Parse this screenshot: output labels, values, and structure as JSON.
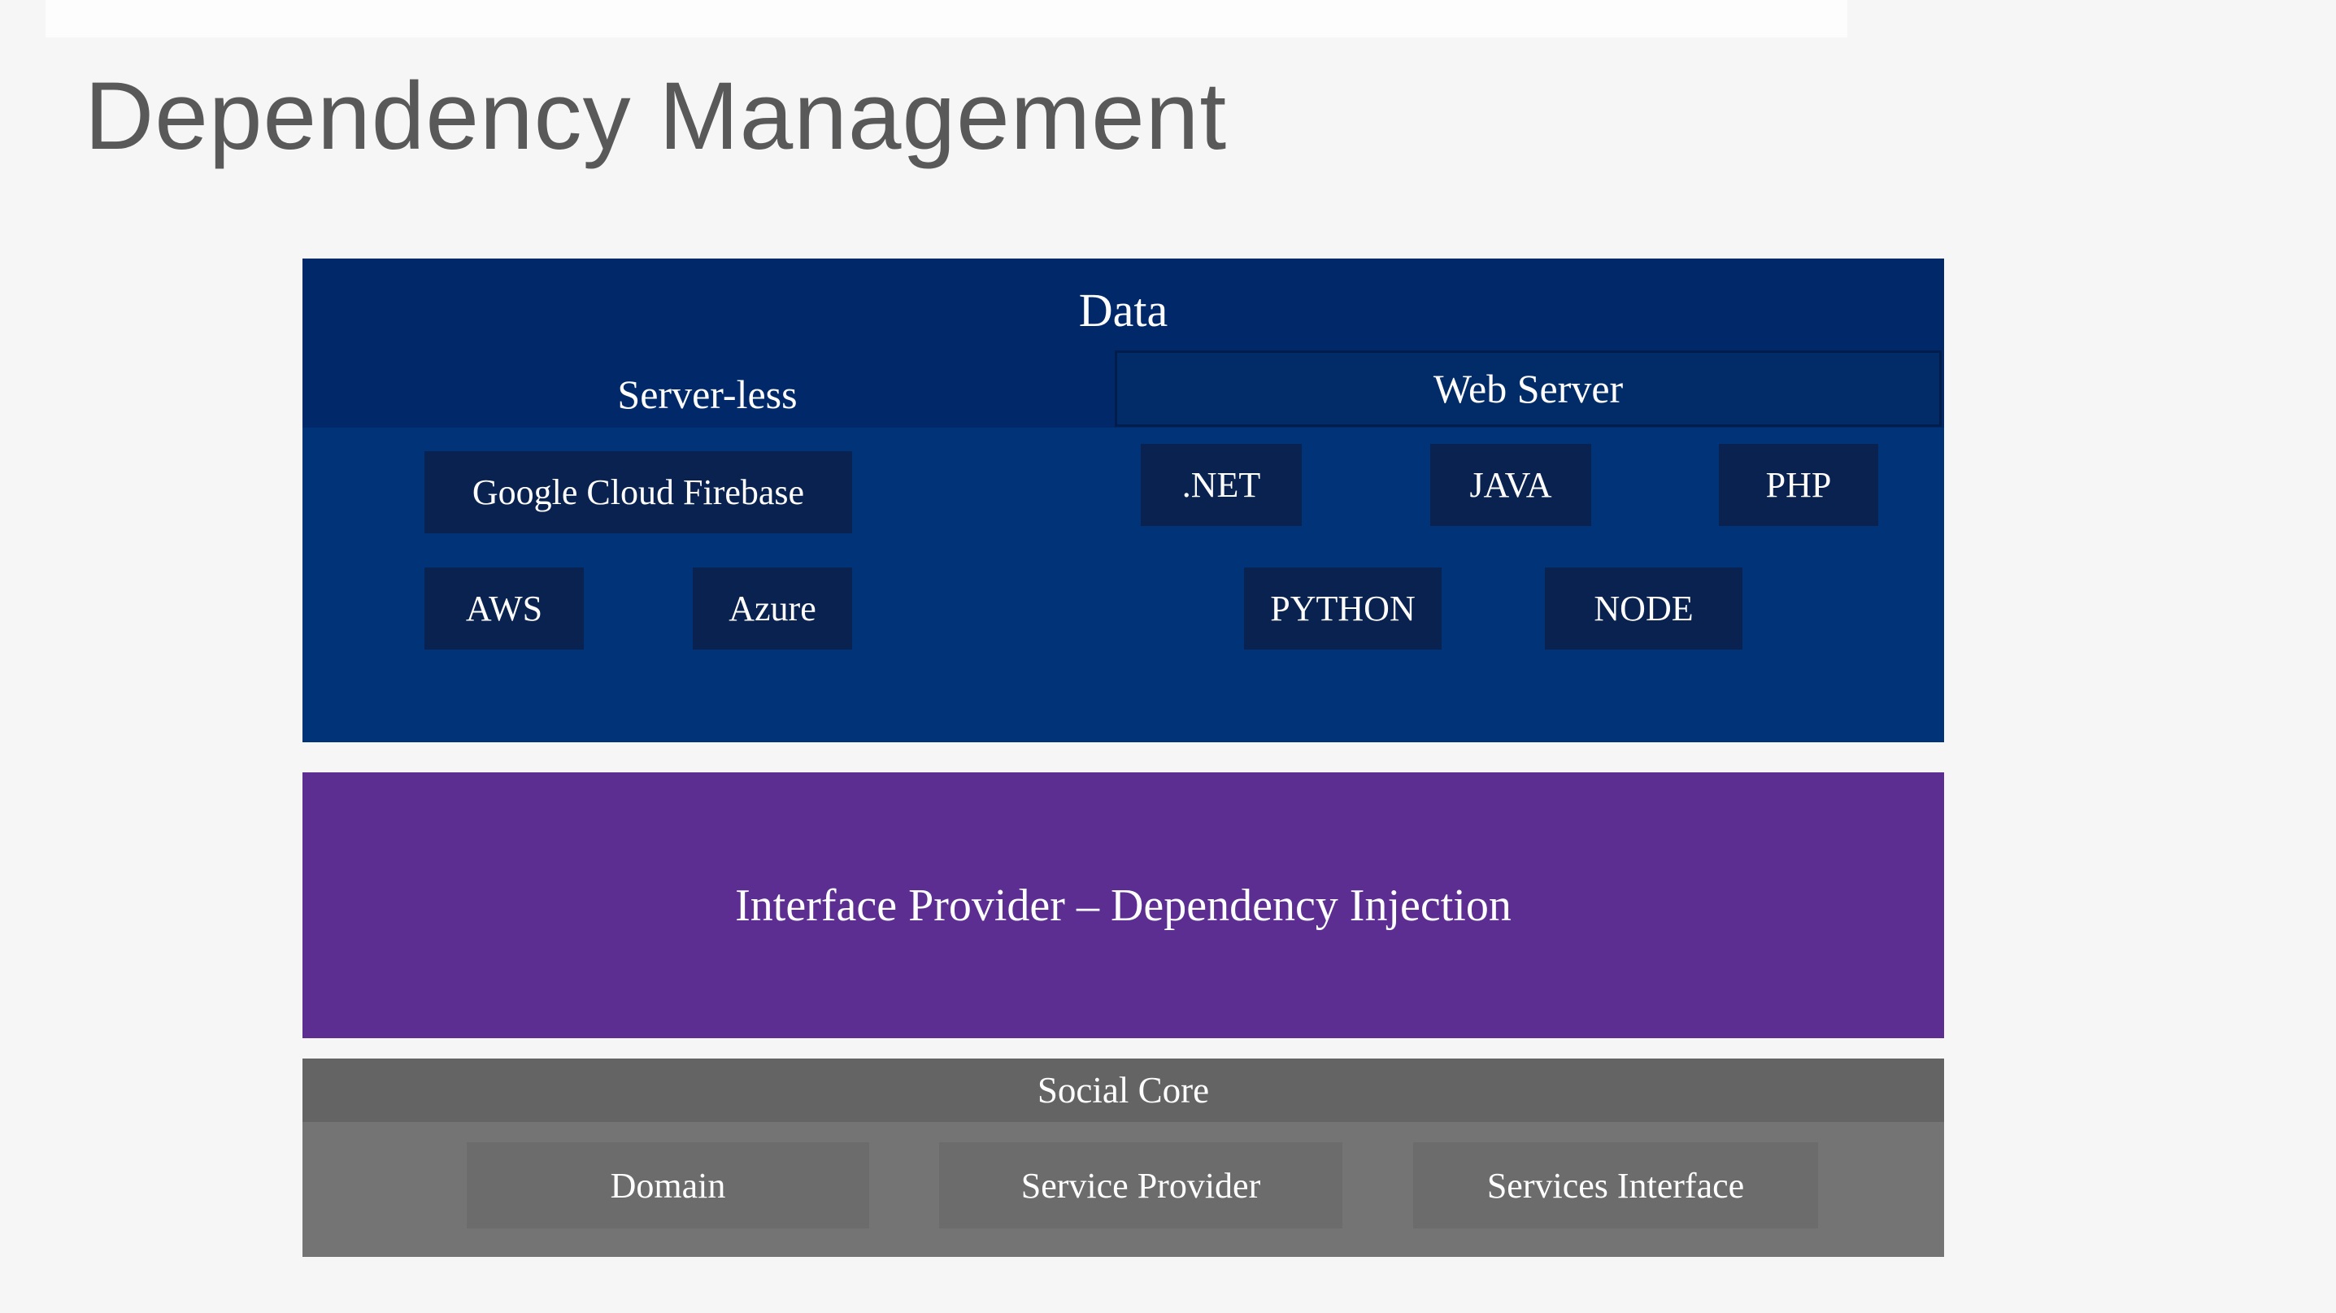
{
  "slide": {
    "title": "Dependency Management"
  },
  "colors": {
    "background": "#f6f6f7",
    "title_text": "#595959",
    "navy_header": "#01296a",
    "navy_body": "#003377",
    "navy_box": "#0a2250",
    "web_band_border": "#001d4c",
    "purple": "#5c2e91",
    "gray_header": "#646464",
    "gray_body": "#747474",
    "gray_box": "#6c6c6c",
    "label_text": "#fefefe"
  },
  "layers": {
    "data": {
      "label": "Data",
      "sections": {
        "serverless": {
          "label": "Server-less",
          "boxes": [
            "Google Cloud Firebase",
            "AWS",
            "Azure"
          ]
        },
        "webserver": {
          "label": "Web Server",
          "boxes": [
            ".NET",
            "JAVA",
            "PHP",
            "PYTHON",
            "NODE"
          ]
        }
      }
    },
    "interface": {
      "label": "Interface Provider – Dependency Injection"
    },
    "social": {
      "label": "Social Core",
      "boxes": [
        "Domain",
        "Service Provider",
        "Services Interface"
      ]
    }
  }
}
